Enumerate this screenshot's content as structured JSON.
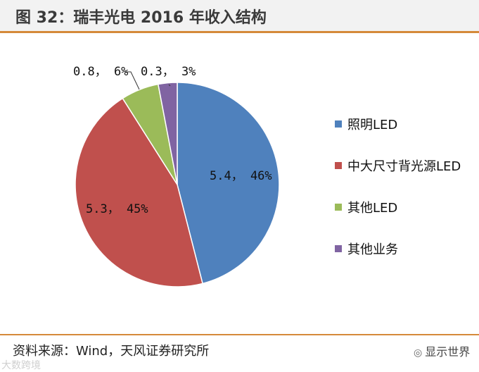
{
  "header": {
    "title": "图 32：瑞丰光电 2016 年收入结构"
  },
  "footer": {
    "source": "资料来源：Wind，天风证券研究所",
    "watermark_right": "显示世界",
    "watermark_left": "大数跨境"
  },
  "colors": {
    "slice_0": "#4f81bd",
    "slice_1": "#c0504d",
    "slice_2": "#9bbb59",
    "slice_3": "#8064a2",
    "rule": "#d58a3a"
  },
  "chart_data": {
    "type": "pie",
    "title": "",
    "slices": [
      {
        "name": "照明LED",
        "value": 5.4,
        "percent": 46,
        "label": "5.4， 46%"
      },
      {
        "name": "中大尺寸背光源LED",
        "value": 5.3,
        "percent": 45,
        "label": "5.3， 45%"
      },
      {
        "name": "其他LED",
        "value": 0.8,
        "percent": 6,
        "label": "0.8， 6%"
      },
      {
        "name": "其他业务",
        "value": 0.3,
        "percent": 3,
        "label": "0.3， 3%"
      }
    ],
    "start_angle_deg": 0,
    "direction": "clockwise",
    "legend": "right"
  }
}
